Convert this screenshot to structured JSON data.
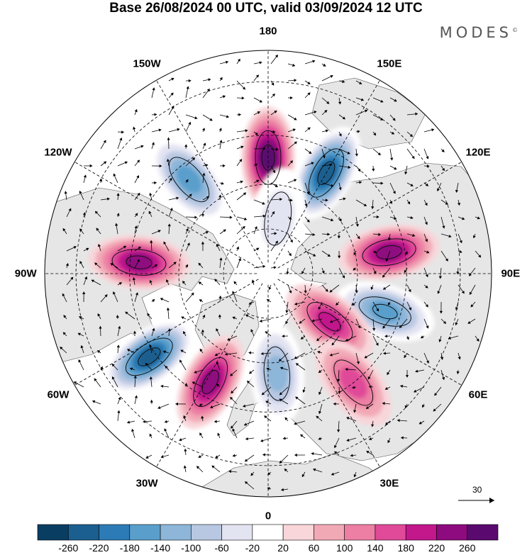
{
  "header": {
    "title": "Base 26/08/2024 00 UTC, valid 03/09/2024 12 UTC",
    "brand": "MODES",
    "brand_mark": "©"
  },
  "map": {
    "projection": "north-polar-stereographic",
    "lon_labels": [
      "180",
      "150E",
      "120E",
      "90E",
      "60E",
      "30E",
      "0",
      "30W",
      "60W",
      "90W",
      "120W",
      "150W"
    ],
    "land_color": "#e6e6e6",
    "ocean_color": "#ffffff",
    "anomaly_lobes": [
      {
        "lon": 180,
        "dist": 0.52,
        "value": 240
      },
      {
        "lon": 150,
        "dist": 0.52,
        "value": -240
      },
      {
        "lon": 100,
        "dist": 0.55,
        "value": 220
      },
      {
        "lon": 72,
        "dist": 0.55,
        "value": -180
      },
      {
        "lon": 52,
        "dist": 0.35,
        "value": 180
      },
      {
        "lon": 38,
        "dist": 0.62,
        "value": 140
      },
      {
        "lon": 5,
        "dist": 0.45,
        "value": -140
      },
      {
        "lon": -28,
        "dist": 0.55,
        "value": 200
      },
      {
        "lon": -55,
        "dist": 0.65,
        "value": -260
      },
      {
        "lon": -95,
        "dist": 0.58,
        "value": 220
      },
      {
        "lon": -140,
        "dist": 0.55,
        "value": -160
      },
      {
        "lon": 170,
        "dist": 0.25,
        "value": -60
      }
    ]
  },
  "vector_scale": {
    "label": "30"
  },
  "colorbar": {
    "colors": [
      "#0a3d62",
      "#1a5f8f",
      "#2c7bb6",
      "#5a9fcc",
      "#8db6d9",
      "#b9c8e2",
      "#e3e4f2",
      "#ffffff",
      "#f8d6da",
      "#f2a9b6",
      "#ec7fa3",
      "#e04a98",
      "#c2188c",
      "#8e0b7f",
      "#5a0a6e"
    ],
    "labels": [
      "-260",
      "-220",
      "-180",
      "-140",
      "-100",
      "-60",
      "-20",
      "20",
      "60",
      "100",
      "140",
      "180",
      "220",
      "260"
    ]
  }
}
